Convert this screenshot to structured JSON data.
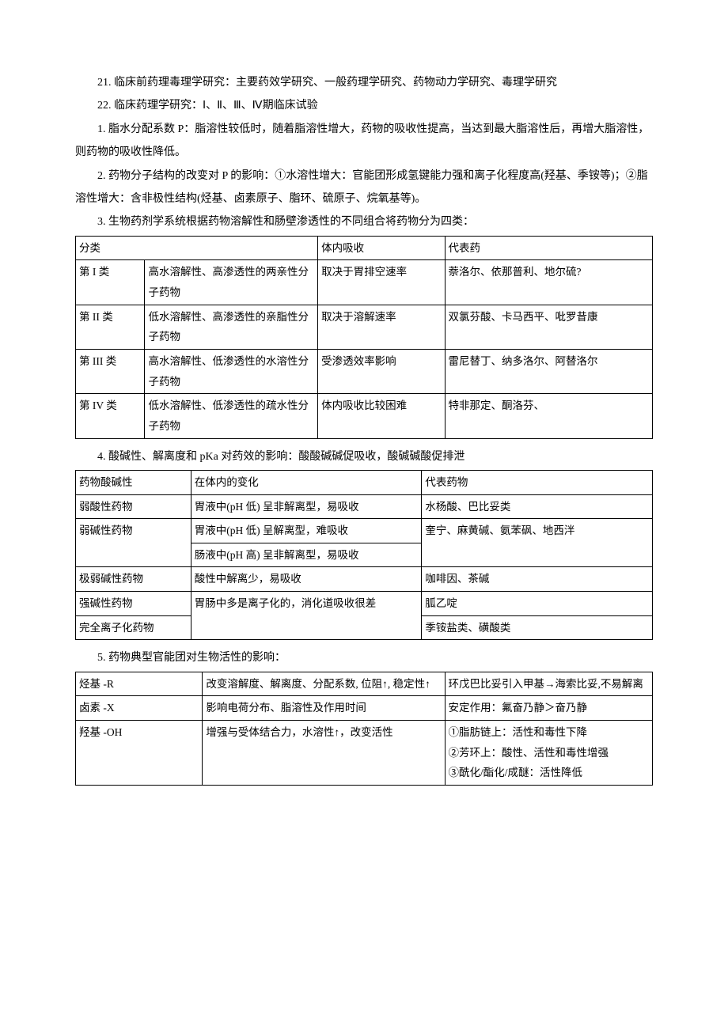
{
  "paragraphs": {
    "p21": "21. 临床前药理毒理学研究：主要药效学研究、一般药理学研究、药物动力学研究、毒理学研究",
    "p22": "22. 临床药理学研究：Ⅰ、Ⅱ、Ⅲ、Ⅳ期临床试验",
    "p1": "1. 脂水分配系数 P：脂溶性较低时，随着脂溶性增大，药物的吸收性提高，当达到最大脂溶性后，再增大脂溶性，则药物的吸收性降低。",
    "p2": "2. 药物分子结构的改变对 P 的影响：①水溶性增大：官能团形成氢键能力强和离子化程度高(羟基、季铵等)；②脂溶性增大：含非极性结构(烃基、卤素原子、脂环、硫原子、烷氧基等)。",
    "p3": "3. 生物药剂学系统根据药物溶解性和肠壁渗透性的不同组合将药物分为四类：",
    "p4": "4. 酸碱性、解离度和 pKa 对药效的影响：酸酸碱碱促吸收，酸碱碱酸促排泄",
    "p5": "5. 药物典型官能团对生物活性的影响："
  },
  "table1": {
    "header": {
      "c1": "分类",
      "c2": "",
      "c3": "体内吸收",
      "c4": "代表药"
    },
    "rows": [
      {
        "c1": "第 I 类",
        "c2": "高水溶解性、高渗透性的两亲性分子药物",
        "c3": "取决于胃排空速率",
        "c4": "萘洛尔、依那普利、地尔硫?"
      },
      {
        "c1": "第 II 类",
        "c2": "低水溶解性、高渗透性的亲脂性分子药物",
        "c3": "取决于溶解速率",
        "c4": "双氯芬酸、卡马西平、吡罗昔康"
      },
      {
        "c1": "第 III 类",
        "c2": "高水溶解性、低渗透性的水溶性分子药物",
        "c3": "受渗透效率影响",
        "c4": "雷尼替丁、纳多洛尔、阿替洛尔"
      },
      {
        "c1": "第 IV 类",
        "c2": "低水溶解性、低渗透性的疏水性分子药物",
        "c3": "体内吸收比较困难",
        "c4": "特非那定、酮洛芬、"
      }
    ]
  },
  "table2": {
    "header": {
      "c1": "药物酸碱性",
      "c2": "在体内的变化",
      "c3": "代表药物"
    },
    "rows": {
      "r1": {
        "c1": "弱酸性药物",
        "c2": "胃液中(pH 低) 呈非解离型，易吸收",
        "c3": "水杨酸、巴比妥类"
      },
      "r2a": {
        "c1": "弱碱性药物",
        "c2": "胃液中(pH 低) 呈解离型，难吸收",
        "c3": "奎宁、麻黄碱、氨苯砜、地西泮"
      },
      "r2b": {
        "c2": "肠液中(pH 高) 呈非解离型，易吸收"
      },
      "r3": {
        "c1": "极弱碱性药物",
        "c2": "酸性中解离少，易吸收",
        "c3": "咖啡因、茶碱"
      },
      "r4": {
        "c1": "强碱性药物",
        "c2": "胃肠中多是离子化的，消化道吸收很差",
        "c3": "胍乙啶"
      },
      "r5": {
        "c1": "完全离子化药物",
        "c3": "季铵盐类、磺酸类"
      }
    }
  },
  "table3": {
    "rows": {
      "r1": {
        "c1": "烃基 -R",
        "c2": "改变溶解度、解离度、分配系数, 位阻↑, 稳定性↑",
        "c3": "环戊巴比妥引入甲基→海索比妥,不易解离"
      },
      "r2": {
        "c1": "卤素 -X",
        "c2": "影响电荷分布、脂溶性及作用时间",
        "c3": "安定作用：氟奋乃静＞奋乃静"
      },
      "r3": {
        "c1": "羟基 -OH",
        "c2": "增强与受体结合力，水溶性↑，改变活性",
        "c3": "①脂肪链上：活性和毒性下降\n②芳环上：酸性、活性和毒性增强\n③酰化/酯化/成醚：活性降低"
      }
    }
  }
}
